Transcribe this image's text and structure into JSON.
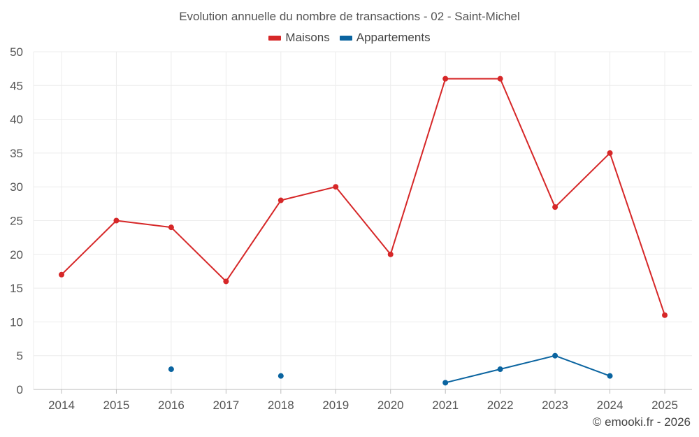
{
  "chart_data": {
    "type": "line",
    "title": "Evolution annuelle du nombre de transactions - 02 - Saint-Michel",
    "categories": [
      "2014",
      "2015",
      "2016",
      "2017",
      "2018",
      "2019",
      "2020",
      "2021",
      "2022",
      "2023",
      "2024",
      "2025"
    ],
    "ylim": [
      0,
      50
    ],
    "yticks": [
      0,
      5,
      10,
      15,
      20,
      25,
      30,
      35,
      40,
      45,
      50
    ],
    "grid": true,
    "legend_position": "top-center",
    "series": [
      {
        "name": "Maisons",
        "color": "#d62728",
        "values": [
          17,
          25,
          24,
          16,
          28,
          30,
          20,
          46,
          46,
          27,
          35,
          11
        ]
      },
      {
        "name": "Appartements",
        "color": "#0a64a0",
        "values": [
          null,
          null,
          3,
          null,
          2,
          null,
          null,
          1,
          3,
          5,
          2,
          null
        ]
      }
    ]
  },
  "footer": {
    "credit": "© emooki.fr - 2026"
  }
}
